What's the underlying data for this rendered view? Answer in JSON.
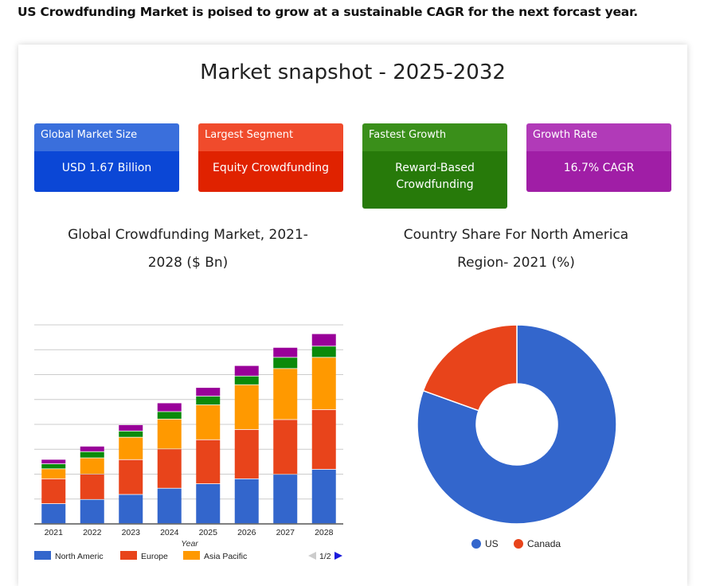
{
  "headline": "US Crowdfunding Market is poised to grow at a sustainable CAGR for the next forcast year.",
  "snapshot_title": "Market snapshot - 2025-2032",
  "kpis": [
    {
      "label": "Global Market Size",
      "value": "USD 1.67 Billion",
      "head_color": "#3a6fdc",
      "body_color": "#0b47d6"
    },
    {
      "label": "Largest Segment",
      "value": "Equity Crowdfunding",
      "head_color": "#f04b2c",
      "body_color": "#e02200"
    },
    {
      "label": "Fastest Growth",
      "value": "Reward-Based Crowdfunding",
      "head_color": "#3a8f1a",
      "body_color": "#277a0a"
    },
    {
      "label": "Growth Rate",
      "value": "16.7% CAGR",
      "head_color": "#b13ab8",
      "body_color": "#a01ea6"
    }
  ],
  "bar_chart_title_line1": "Global Crowdfunding Market, 2021-",
  "bar_chart_title_line2": "2028 ($ Bn)",
  "pie_chart_title_line1": "Country Share For North America",
  "pie_chart_title_line2": "Region- 2021 (%)",
  "legend_pager": "1/2",
  "chart_data": [
    {
      "type": "bar",
      "stacked": true,
      "xlabel": "Year",
      "categories": [
        "2021",
        "2022",
        "2023",
        "2024",
        "2025",
        "2026",
        "2027",
        "2028"
      ],
      "series": [
        {
          "name": "North Americ",
          "color": "#3366cc",
          "values": [
            0.8,
            0.97,
            1.17,
            1.42,
            1.6,
            1.8,
            1.98,
            2.18
          ]
        },
        {
          "name": "Europe",
          "color": "#e8441b",
          "values": [
            1.0,
            1.02,
            1.4,
            1.58,
            1.77,
            1.98,
            2.2,
            2.4
          ]
        },
        {
          "name": "Asia Pacific",
          "color": "#ff9900",
          "values": [
            0.4,
            0.65,
            0.9,
            1.2,
            1.4,
            1.8,
            2.05,
            2.1
          ]
        },
        {
          "values": [
            0.2,
            0.25,
            0.25,
            0.3,
            0.35,
            0.35,
            0.45,
            0.45
          ],
          "color": "#0a8a0a"
        },
        {
          "values": [
            0.18,
            0.22,
            0.25,
            0.35,
            0.35,
            0.42,
            0.4,
            0.5
          ],
          "color": "#990099"
        }
      ],
      "ylim": [
        0,
        8
      ],
      "grid": true,
      "legend": "bottom"
    },
    {
      "type": "pie",
      "donut": true,
      "labels": [
        "US",
        "Canada"
      ],
      "values": [
        80.5,
        19.5
      ],
      "colors": [
        "#3366cc",
        "#e8441b"
      ],
      "legend": "bottom"
    }
  ]
}
